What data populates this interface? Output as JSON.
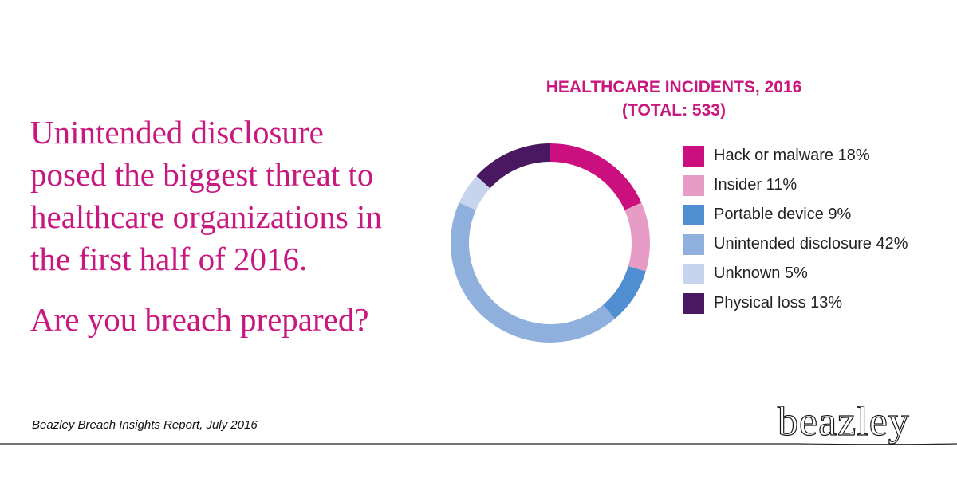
{
  "headline": {
    "lines": [
      "Unintended disclosure",
      "posed the biggest threat to",
      "healthcare organizations in",
      "the first half of 2016."
    ],
    "question": "Are you breach prepared?"
  },
  "source": "Beazley Breach Insights Report, July 2016",
  "logo": "beazley",
  "chart_data": {
    "type": "pie",
    "subtype": "donut",
    "title": "HEALTHCARE INCIDENTS, 2016",
    "subtitle": "(TOTAL: 533)",
    "legend_position": "right",
    "slices": [
      {
        "label": "Hack or malware 18%",
        "name": "Hack or malware",
        "value": 18,
        "color": "#cc0f7e"
      },
      {
        "label": "Insider 11%",
        "name": "Insider",
        "value": 11,
        "color": "#e79cc6"
      },
      {
        "label": "Portable device 9%",
        "name": "Portable device",
        "value": 9,
        "color": "#4f8fd1"
      },
      {
        "label": "Unintended disclosure 42%",
        "name": "Unintended disclosure",
        "value": 42,
        "color": "#8fb0dd"
      },
      {
        "label": "Unknown 5%",
        "name": "Unknown",
        "value": 5,
        "color": "#c6d4ee"
      },
      {
        "label": "Physical loss 13%",
        "name": "Physical loss",
        "value": 13,
        "color": "#4a1860"
      }
    ]
  }
}
